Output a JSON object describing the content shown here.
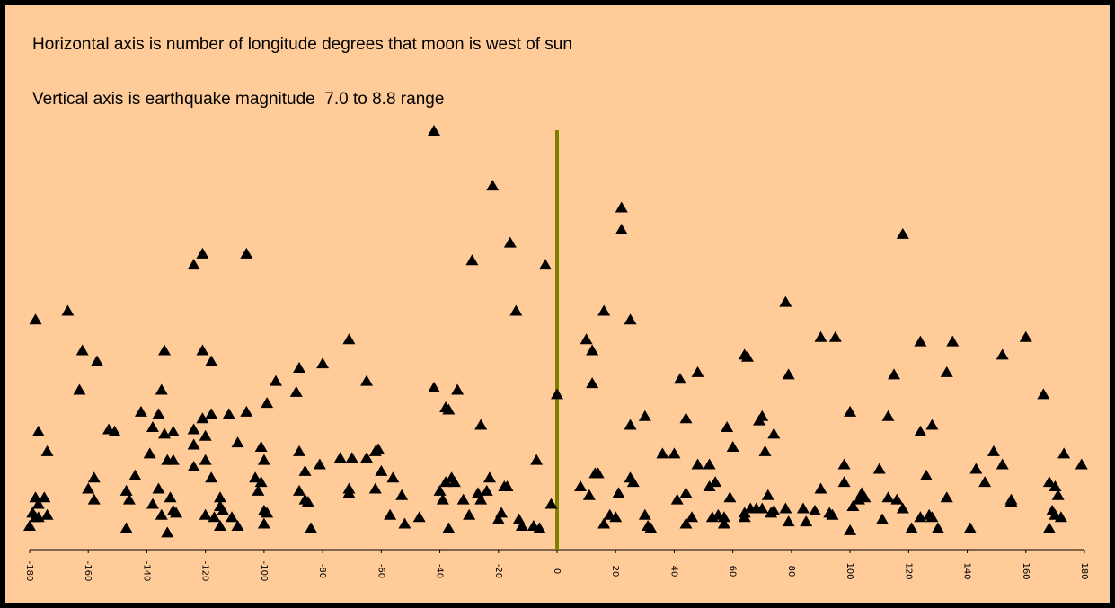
{
  "captions": {
    "line1": "Horizontal axis is number of longitude degrees that moon is west of sun",
    "line2": "Vertical axis is earthquake magnitude  7.0 to 8.8 range"
  },
  "colors": {
    "background": "#FFCC99",
    "border": "#000000",
    "marker": "#000000",
    "zero_line": "#808000"
  },
  "chart_data": {
    "type": "scatter",
    "title": "",
    "xlabel": "Horizontal axis is number of longitude degrees that moon is west of sun",
    "ylabel": "Vertical axis is earthquake magnitude  7.0 to 8.8 range",
    "xlim": [
      -180,
      180
    ],
    "ylim": [
      7.0,
      8.8
    ],
    "xticks": [
      -180,
      -160,
      -140,
      -120,
      -100,
      -80,
      -60,
      -40,
      -20,
      0,
      20,
      40,
      60,
      80,
      100,
      120,
      140,
      160,
      180
    ],
    "reference_line_x": 0,
    "grid": false,
    "marker": "triangle",
    "points": [
      [
        -42,
        8.8
      ],
      [
        -22,
        8.55
      ],
      [
        22,
        8.45
      ],
      [
        22,
        8.35
      ],
      [
        118,
        8.33
      ],
      [
        -16,
        8.29
      ],
      [
        -106,
        8.24
      ],
      [
        -121,
        8.24
      ],
      [
        -124,
        8.19
      ],
      [
        -29,
        8.21
      ],
      [
        -4,
        8.19
      ],
      [
        78,
        8.02
      ],
      [
        -167,
        7.98
      ],
      [
        -178,
        7.94
      ],
      [
        -14,
        7.98
      ],
      [
        16,
        7.98
      ],
      [
        25,
        7.94
      ],
      [
        10,
        7.85
      ],
      [
        90,
        7.86
      ],
      [
        95,
        7.86
      ],
      [
        124,
        7.84
      ],
      [
        135,
        7.84
      ],
      [
        160,
        7.86
      ],
      [
        -71,
        7.85
      ],
      [
        -162,
        7.8
      ],
      [
        -157,
        7.75
      ],
      [
        -134,
        7.8
      ],
      [
        -121,
        7.8
      ],
      [
        -118,
        7.75
      ],
      [
        -80,
        7.74
      ],
      [
        -88,
        7.72
      ],
      [
        12,
        7.8
      ],
      [
        64,
        7.78
      ],
      [
        65,
        7.77
      ],
      [
        152,
        7.78
      ],
      [
        -96,
        7.66
      ],
      [
        -65,
        7.66
      ],
      [
        -89,
        7.61
      ],
      [
        -42,
        7.63
      ],
      [
        -34,
        7.62
      ],
      [
        12,
        7.65
      ],
      [
        42,
        7.67
      ],
      [
        48,
        7.7
      ],
      [
        79,
        7.69
      ],
      [
        115,
        7.69
      ],
      [
        133,
        7.7
      ],
      [
        -163,
        7.62
      ],
      [
        -135,
        7.62
      ],
      [
        -99,
        7.56
      ],
      [
        -38,
        7.54
      ],
      [
        -37,
        7.53
      ],
      [
        0,
        7.6
      ],
      [
        166,
        7.6
      ],
      [
        -142,
        7.52
      ],
      [
        -136,
        7.51
      ],
      [
        -118,
        7.51
      ],
      [
        -121,
        7.49
      ],
      [
        -112,
        7.51
      ],
      [
        -106,
        7.52
      ],
      [
        -26,
        7.46
      ],
      [
        25,
        7.46
      ],
      [
        30,
        7.5
      ],
      [
        44,
        7.49
      ],
      [
        58,
        7.45
      ],
      [
        69,
        7.48
      ],
      [
        70,
        7.5
      ],
      [
        74,
        7.42
      ],
      [
        100,
        7.52
      ],
      [
        113,
        7.5
      ],
      [
        124,
        7.43
      ],
      [
        128,
        7.46
      ],
      [
        -153,
        7.44
      ],
      [
        -151,
        7.43
      ],
      [
        -138,
        7.45
      ],
      [
        -134,
        7.42
      ],
      [
        -124,
        7.44
      ],
      [
        -131,
        7.43
      ],
      [
        -177,
        7.43
      ],
      [
        -174,
        7.34
      ],
      [
        -139,
        7.33
      ],
      [
        -124,
        7.37
      ],
      [
        -120,
        7.41
      ],
      [
        -109,
        7.38
      ],
      [
        -101,
        7.36
      ],
      [
        -88,
        7.34
      ],
      [
        -62,
        7.34
      ],
      [
        -61,
        7.35
      ],
      [
        -65,
        7.31
      ],
      [
        -70,
        7.31
      ],
      [
        -74,
        7.31
      ],
      [
        -81,
        7.28
      ],
      [
        -7,
        7.3
      ],
      [
        36,
        7.33
      ],
      [
        40,
        7.33
      ],
      [
        52,
        7.28
      ],
      [
        48,
        7.28
      ],
      [
        60,
        7.36
      ],
      [
        71,
        7.34
      ],
      [
        98,
        7.28
      ],
      [
        110,
        7.26
      ],
      [
        149,
        7.34
      ],
      [
        152,
        7.28
      ],
      [
        173,
        7.33
      ],
      [
        179,
        7.28
      ],
      [
        -133,
        7.3
      ],
      [
        -131,
        7.3
      ],
      [
        -124,
        7.27
      ],
      [
        -120,
        7.3
      ],
      [
        -100,
        7.3
      ],
      [
        -60,
        7.25
      ],
      [
        -56,
        7.22
      ],
      [
        -23,
        7.22
      ],
      [
        13,
        7.24
      ],
      [
        14,
        7.24
      ],
      [
        25,
        7.22
      ],
      [
        44,
        7.15
      ],
      [
        54,
        7.2
      ],
      [
        98,
        7.2
      ],
      [
        126,
        7.23
      ],
      [
        143,
        7.26
      ],
      [
        -158,
        7.22
      ],
      [
        -144,
        7.23
      ],
      [
        -118,
        7.22
      ],
      [
        -103,
        7.22
      ],
      [
        -101,
        7.2
      ],
      [
        -86,
        7.25
      ],
      [
        -36,
        7.22
      ],
      [
        -38,
        7.2
      ],
      [
        -35,
        7.2
      ],
      [
        -18,
        7.18
      ],
      [
        -17,
        7.18
      ],
      [
        8,
        7.18
      ],
      [
        26,
        7.2
      ],
      [
        52,
        7.18
      ],
      [
        90,
        7.17
      ],
      [
        104,
        7.15
      ],
      [
        146,
        7.2
      ],
      [
        168,
        7.2
      ],
      [
        170,
        7.18
      ],
      [
        -160,
        7.17
      ],
      [
        -147,
        7.16
      ],
      [
        -136,
        7.17
      ],
      [
        -132,
        7.13
      ],
      [
        -115,
        7.13
      ],
      [
        -102,
        7.16
      ],
      [
        -88,
        7.16
      ],
      [
        -71,
        7.17
      ],
      [
        -71,
        7.15
      ],
      [
        -62,
        7.17
      ],
      [
        -53,
        7.14
      ],
      [
        -40,
        7.16
      ],
      [
        -27,
        7.15
      ],
      [
        -24,
        7.16
      ],
      [
        11,
        7.14
      ],
      [
        21,
        7.15
      ],
      [
        41,
        7.12
      ],
      [
        59,
        7.13
      ],
      [
        72,
        7.14
      ],
      [
        103,
        7.12
      ],
      [
        105,
        7.13
      ],
      [
        113,
        7.13
      ],
      [
        116,
        7.12
      ],
      [
        133,
        7.13
      ],
      [
        155,
        7.12
      ],
      [
        171,
        7.14
      ],
      [
        -178,
        7.13
      ],
      [
        -175,
        7.13
      ],
      [
        -177,
        7.1
      ],
      [
        -158,
        7.12
      ],
      [
        -146,
        7.12
      ],
      [
        -138,
        7.1
      ],
      [
        -131,
        7.07
      ],
      [
        -115,
        7.09
      ],
      [
        -114,
        7.07
      ],
      [
        -86,
        7.12
      ],
      [
        -85,
        7.11
      ],
      [
        -39,
        7.12
      ],
      [
        -32,
        7.12
      ],
      [
        -26,
        7.12
      ],
      [
        -2,
        7.1
      ],
      [
        64,
        7.06
      ],
      [
        66,
        7.08
      ],
      [
        68,
        7.08
      ],
      [
        70,
        7.08
      ],
      [
        74,
        7.07
      ],
      [
        78,
        7.08
      ],
      [
        84,
        7.08
      ],
      [
        88,
        7.07
      ],
      [
        94,
        7.05
      ],
      [
        101,
        7.09
      ],
      [
        118,
        7.08
      ],
      [
        127,
        7.05
      ],
      [
        155,
        7.11
      ],
      [
        169,
        7.07
      ],
      [
        -179,
        7.06
      ],
      [
        -177,
        7.04
      ],
      [
        -178,
        7.04
      ],
      [
        -174,
        7.05
      ],
      [
        -135,
        7.05
      ],
      [
        -130,
        7.06
      ],
      [
        -120,
        7.05
      ],
      [
        -117,
        7.04
      ],
      [
        -111,
        7.04
      ],
      [
        -100,
        7.07
      ],
      [
        -99,
        7.06
      ],
      [
        -57,
        7.05
      ],
      [
        -47,
        7.04
      ],
      [
        -30,
        7.05
      ],
      [
        -19,
        7.06
      ],
      [
        -13,
        7.03
      ],
      [
        18,
        7.05
      ],
      [
        20,
        7.04
      ],
      [
        30,
        7.05
      ],
      [
        46,
        7.04
      ],
      [
        53,
        7.04
      ],
      [
        55,
        7.05
      ],
      [
        57,
        7.04
      ],
      [
        64,
        7.04
      ],
      [
        73,
        7.06
      ],
      [
        93,
        7.06
      ],
      [
        111,
        7.03
      ],
      [
        124,
        7.04
      ],
      [
        128,
        7.04
      ],
      [
        170,
        7.05
      ],
      [
        172,
        7.04
      ],
      [
        -180,
        7.0
      ],
      [
        -147,
        6.99
      ],
      [
        -133,
        6.97
      ],
      [
        -115,
        7.0
      ],
      [
        -109,
        7.0
      ],
      [
        -100,
        7.01
      ],
      [
        -84,
        6.99
      ],
      [
        -52,
        7.01
      ],
      [
        -37,
        6.99
      ],
      [
        -20,
        7.03
      ],
      [
        -12,
        7.0
      ],
      [
        -8,
        7.0
      ],
      [
        -6,
        6.99
      ],
      [
        16,
        7.01
      ],
      [
        31,
        7.0
      ],
      [
        32,
        6.99
      ],
      [
        44,
        7.01
      ],
      [
        57,
        7.01
      ],
      [
        79,
        7.02
      ],
      [
        85,
        7.02
      ],
      [
        100,
        6.98
      ],
      [
        121,
        6.99
      ],
      [
        130,
        6.99
      ],
      [
        141,
        6.99
      ],
      [
        168,
        6.99
      ]
    ]
  }
}
